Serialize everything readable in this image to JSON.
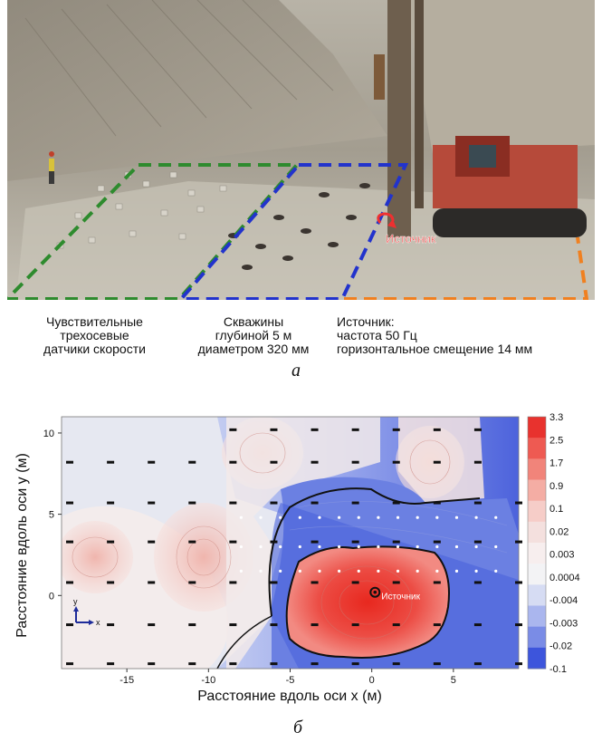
{
  "photo": {
    "source_label": "Источник",
    "captions": [
      {
        "lines": [
          "Чувствительные",
          "трехосевые",
          "датчики скорости"
        ]
      },
      {
        "lines": [
          "Скважины",
          "глубиной 5 м",
          "диаметром 320 мм"
        ]
      },
      {
        "lines": [
          "Источник:",
          "частота 50 Гц",
          "горизонтальное смещение 14 мм"
        ]
      }
    ],
    "zone_colors": {
      "sensors": "#2e8b2e",
      "boreholes": "#2233cc",
      "source": "#f08020"
    },
    "panel_label": "а"
  },
  "chart_data": {
    "type": "heatmap",
    "xlabel": "Расстояние вдоль оси x (м)",
    "ylabel": "Расстояние вдоль оси y (м)",
    "xlim": [
      -19,
      9
    ],
    "ylim": [
      -4.5,
      11
    ],
    "x_ticks": [
      -15,
      -10,
      -5,
      0,
      5
    ],
    "y_ticks": [
      0,
      5,
      10
    ],
    "colorbar_labels": [
      "3.3",
      "2.5",
      "1.7",
      "0.9",
      "0.1",
      "0.02",
      "0.003",
      "0.0004",
      "-0.004",
      "-0.003",
      "-0.02",
      "-0.1"
    ],
    "colorbar_colors": [
      "#e8322e",
      "#ee5a52",
      "#f1847a",
      "#f4ada4",
      "#f6cdc8",
      "#f4e0de",
      "#f7eeee",
      "#f3f3f5",
      "#d6dcf3",
      "#aab6ee",
      "#7a8ce6",
      "#3d55dc"
    ],
    "source_label": "Источник",
    "source_point": [
      0.2,
      0.2
    ],
    "axis_inset": {
      "y": "y",
      "x": "x"
    }
  },
  "panel_label_b": "б"
}
